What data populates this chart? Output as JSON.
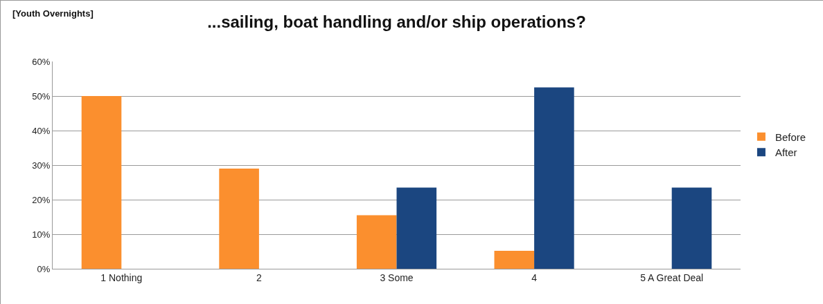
{
  "chart_data": {
    "type": "bar",
    "title": "...sailing, boat handling and/or ship operations?",
    "subtitle": "[Youth Overnights]",
    "categories": [
      "1 Nothing",
      "2",
      "3 Some",
      "4",
      "5 A Great Deal"
    ],
    "series": [
      {
        "name": "Before",
        "color": "#fb8f2e",
        "values": [
          50,
          29,
          15.5,
          5.2,
          0
        ]
      },
      {
        "name": "After",
        "color": "#1b4680",
        "values": [
          0,
          0,
          23.5,
          52.5,
          23.5
        ]
      }
    ],
    "ylim": [
      0,
      60
    ],
    "yticks": [
      {
        "value": 0,
        "label": "0%"
      },
      {
        "value": 10,
        "label": "10%"
      },
      {
        "value": 20,
        "label": "20%"
      },
      {
        "value": 30,
        "label": "30%"
      },
      {
        "value": 40,
        "label": "40%"
      },
      {
        "value": 50,
        "label": "50%"
      },
      {
        "value": 60,
        "label": "60%"
      }
    ],
    "grid": "y",
    "legend": "right"
  }
}
